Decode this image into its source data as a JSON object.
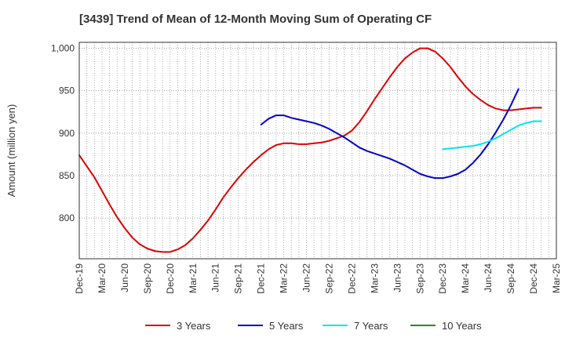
{
  "chart_data": {
    "type": "line",
    "title": "[3439]  Trend of Mean of 12-Month Moving Sum of Operating CF",
    "xlabel": "",
    "ylabel": "Amount (million yen)",
    "ylim": [
      752,
      1007
    ],
    "yticks": [
      800,
      850,
      900,
      950,
      1000
    ],
    "ytick_labels": [
      "800",
      "850",
      "900",
      "950",
      "1,000"
    ],
    "x_tick_labels": [
      "Dec-19",
      "Mar-20",
      "Jun-20",
      "Sep-20",
      "Dec-20",
      "Mar-21",
      "Jun-21",
      "Sep-21",
      "Dec-21",
      "Mar-22",
      "Jun-22",
      "Sep-22",
      "Dec-22",
      "Mar-23",
      "Jun-23",
      "Sep-23",
      "Dec-23",
      "Mar-24",
      "Jun-24",
      "Sep-24",
      "Dec-24",
      "Mar-25"
    ],
    "grid": true,
    "legend_position": "bottom",
    "series": [
      {
        "name": "3 Years",
        "color": "#dd0000",
        "start_index": 0,
        "values": [
          874,
          861,
          848,
          832,
          816,
          801,
          788,
          777,
          769,
          764,
          761,
          760,
          760,
          763,
          768,
          776,
          786,
          797,
          810,
          824,
          836,
          847,
          857,
          866,
          874,
          881,
          886,
          888,
          888,
          887,
          887,
          888,
          889,
          891,
          894,
          897,
          903,
          913,
          926,
          940,
          953,
          966,
          978,
          988,
          995,
          1000,
          1000,
          996,
          988,
          978,
          966,
          955,
          946,
          939,
          933,
          929,
          927,
          927,
          928,
          929,
          930,
          930
        ]
      },
      {
        "name": "5 Years",
        "color": "#0000cc",
        "start_index": 24,
        "values": [
          910,
          917,
          921,
          921,
          918,
          916,
          914,
          912,
          909,
          905,
          900,
          895,
          889,
          883,
          879,
          876,
          873,
          870,
          866,
          862,
          857,
          852,
          849,
          847,
          847,
          849,
          852,
          857,
          865,
          875,
          887,
          901,
          916,
          933,
          952
        ]
      },
      {
        "name": "7 Years",
        "color": "#00e5ee",
        "start_index": 48,
        "values": [
          881,
          882,
          883,
          884,
          885,
          887,
          890,
          894,
          899,
          904,
          909,
          912,
          914,
          914
        ]
      },
      {
        "name": "10 Years",
        "color": "#228b22",
        "start_index": 0,
        "values": []
      }
    ]
  }
}
